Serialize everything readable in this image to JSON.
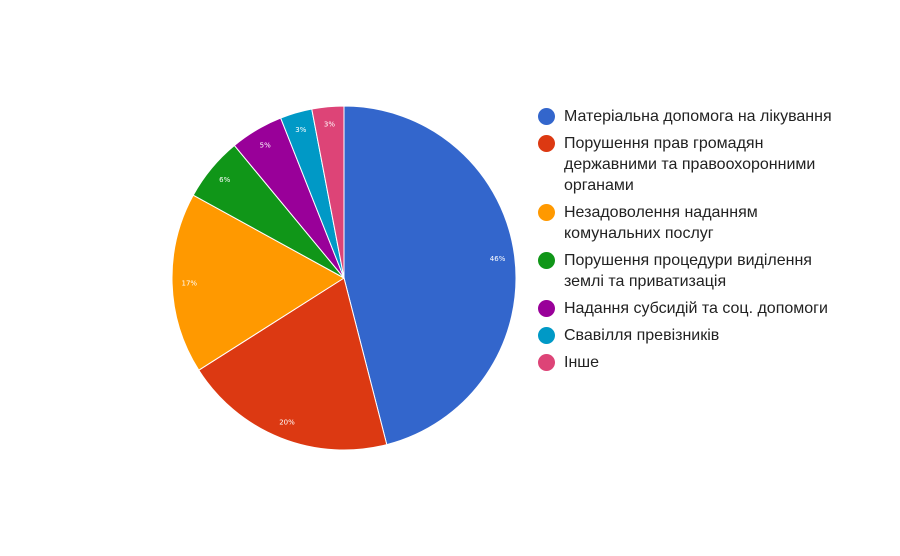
{
  "chart_data": {
    "type": "pie",
    "title": "",
    "legend_position": "right",
    "slices": [
      {
        "label": "Матеріальна допомога на лікування",
        "value": 46,
        "value_label": "46%",
        "color": "#3366cc"
      },
      {
        "label": "Порушення прав громадян державними та правоохоронними органами",
        "value": 20,
        "value_label": "20%",
        "color": "#dc3912"
      },
      {
        "label": "Незадоволення наданням комунальних послуг",
        "value": 17,
        "value_label": "17%",
        "color": "#ff9900"
      },
      {
        "label": "Порушення процедури виділення землі та приватизація",
        "value": 6,
        "value_label": "6%",
        "color": "#109618"
      },
      {
        "label": "Надання субсидій та соц. допомоги",
        "value": 5,
        "value_label": "5%",
        "color": "#990099"
      },
      {
        "label": "Свавілля превізників",
        "value": 3,
        "value_label": "3%",
        "color": "#0099c6"
      },
      {
        "label": "Інше",
        "value": 3,
        "value_label": "3%",
        "color": "#dd4477"
      }
    ]
  }
}
